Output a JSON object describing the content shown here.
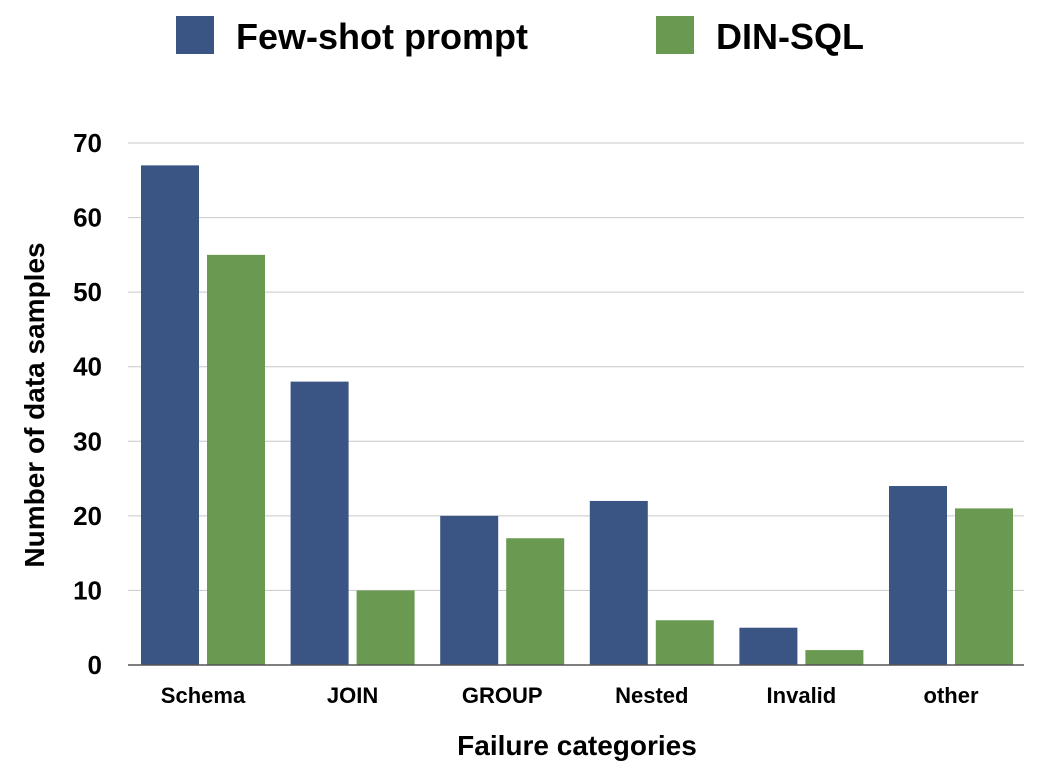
{
  "chart_data": {
    "type": "bar",
    "title": "",
    "xlabel": "Failure categories",
    "ylabel": "Number of data samples",
    "categories": [
      "Schema",
      "JOIN",
      "GROUP",
      "Nested",
      "Invalid",
      "other"
    ],
    "series": [
      {
        "name": "Few-shot prompt",
        "color": "#3a5484",
        "values": [
          67,
          38,
          20,
          22,
          5,
          24
        ]
      },
      {
        "name": "DIN-SQL",
        "color": "#6a9a52",
        "values": [
          55,
          10,
          17,
          6,
          2,
          21
        ]
      }
    ],
    "ylim": [
      0,
      70
    ],
    "yticks": [
      0,
      10,
      20,
      30,
      40,
      50,
      60,
      70
    ],
    "grid": true,
    "legend_position": "top-center"
  }
}
